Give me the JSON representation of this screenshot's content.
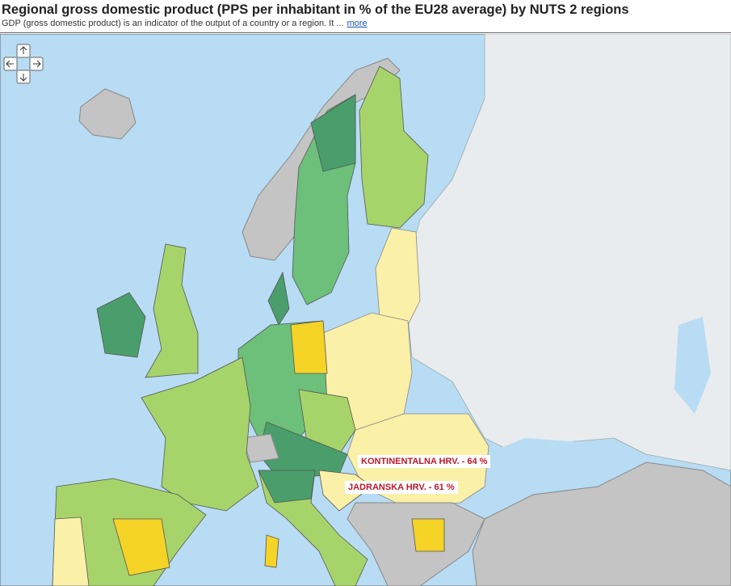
{
  "header": {
    "title": "Regional gross domestic product (PPS per inhabitant in % of the EU28 average) by NUTS 2 regions",
    "subtitle": "GDP (gross domestic product) is an indicator of the output of a country or a region. It ...",
    "more_link": "more"
  },
  "map": {
    "labels": [
      "KONTINENTALNA HRV. - 64 %",
      "JADRANSKA HRV. - 61 %"
    ]
  }
}
